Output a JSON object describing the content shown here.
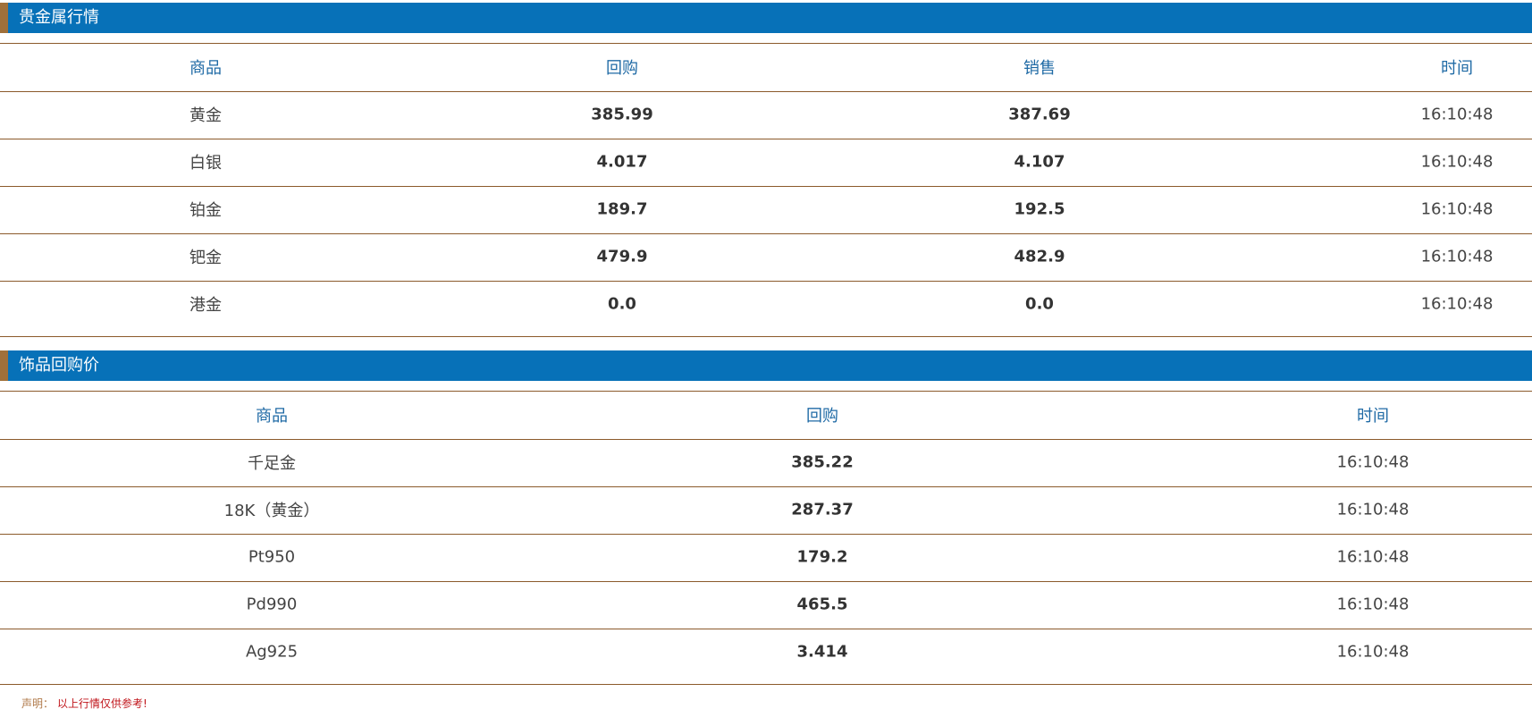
{
  "sections": [
    {
      "title": "贵金属行情",
      "headers": [
        "商品",
        "回购",
        "销售",
        "时间"
      ],
      "rows": [
        [
          "黄金",
          "385.99",
          "387.69",
          "16:10:48"
        ],
        [
          "白银",
          "4.017",
          "4.107",
          "16:10:48"
        ],
        [
          "铂金",
          "189.7",
          "192.5",
          "16:10:48"
        ],
        [
          "钯金",
          "479.9",
          "482.9",
          "16:10:48"
        ],
        [
          "港金",
          "0.0",
          "0.0",
          "16:10:48"
        ]
      ]
    },
    {
      "title": "饰品回购价",
      "headers": [
        "商品",
        "回购",
        "时间"
      ],
      "rows": [
        [
          "千足金",
          "385.22",
          "16:10:48"
        ],
        [
          "18K（黄金）",
          "287.37",
          "16:10:48"
        ],
        [
          "Pt950",
          "179.2",
          "16:10:48"
        ],
        [
          "Pd990",
          "465.5",
          "16:10:48"
        ],
        [
          "Ag925",
          "3.414",
          "16:10:48"
        ]
      ]
    }
  ],
  "footer": {
    "label": "声明：",
    "text": "以上行情仅供参考!"
  }
}
